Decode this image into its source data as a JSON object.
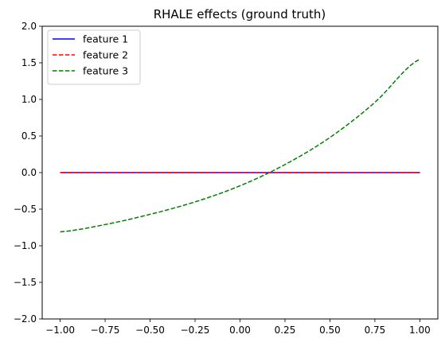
{
  "chart_data": {
    "type": "line",
    "title": "RHALE effects (ground truth)",
    "xlabel": "",
    "ylabel": "",
    "xlim": [
      -1.1,
      1.1
    ],
    "ylim": [
      -2.0,
      2.0
    ],
    "xticks": [
      -1.0,
      -0.75,
      -0.5,
      -0.25,
      0.0,
      0.25,
      0.5,
      0.75,
      1.0
    ],
    "xtick_labels": [
      "−1.00",
      "−0.75",
      "−0.50",
      "−0.25",
      "0.00",
      "0.25",
      "0.50",
      "0.75",
      "1.00"
    ],
    "yticks": [
      -2.0,
      -1.5,
      -1.0,
      -0.5,
      0.0,
      0.5,
      1.0,
      1.5,
      2.0
    ],
    "ytick_labels": [
      "−2.0",
      "−1.5",
      "−1.0",
      "−0.5",
      "0.0",
      "0.5",
      "1.0",
      "1.5",
      "2.0"
    ],
    "grid": false,
    "legend_position": "top-left",
    "x": [
      -1.0,
      -0.75,
      -0.5,
      -0.25,
      0.0,
      0.25,
      0.5,
      0.75,
      1.0
    ],
    "series": [
      {
        "name": "feature 1",
        "color": "#0000ff",
        "style": "solid",
        "values": [
          0,
          0,
          0,
          0,
          0,
          0,
          0,
          0,
          0
        ]
      },
      {
        "name": "feature 2",
        "color": "#ff0000",
        "style": "dashed",
        "values": [
          0,
          0,
          0,
          0,
          0,
          0,
          0,
          0,
          0
        ]
      },
      {
        "name": "feature 3",
        "color": "#008000",
        "style": "dashed",
        "values": [
          -0.81,
          -0.71,
          -0.57,
          -0.4,
          -0.18,
          0.11,
          0.48,
          0.96,
          1.55
        ]
      }
    ]
  }
}
